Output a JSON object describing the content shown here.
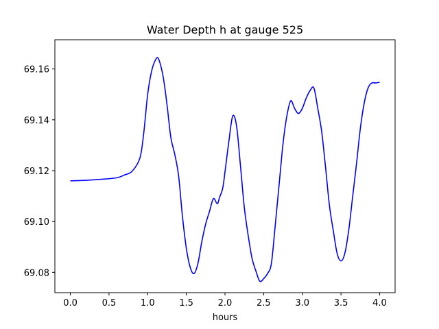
{
  "chart_data": {
    "type": "line",
    "title": "Water Depth h at gauge 525",
    "xlabel": "hours",
    "ylabel": "",
    "xlim": [
      -0.2,
      4.2
    ],
    "ylim": [
      69.072,
      69.1715
    ],
    "grid": false,
    "x_ticks": [
      0.0,
      0.5,
      1.0,
      1.5,
      2.0,
      2.5,
      3.0,
      3.5,
      4.0
    ],
    "x_tick_labels": [
      "0.0",
      "0.5",
      "1.0",
      "1.5",
      "2.0",
      "2.5",
      "3.0",
      "3.5",
      "4.0"
    ],
    "y_ticks": [
      69.08,
      69.1,
      69.12,
      69.14,
      69.16
    ],
    "y_tick_labels": [
      "69.08",
      "69.10",
      "69.12",
      "69.14",
      "69.16"
    ],
    "series": [
      {
        "color": "#0000ff",
        "x": [
          0.0,
          0.2,
          0.4,
          0.6,
          0.7,
          0.8,
          0.9,
          0.95,
          1.0,
          1.05,
          1.1,
          1.14,
          1.2,
          1.25,
          1.3,
          1.35,
          1.4,
          1.45,
          1.5,
          1.55,
          1.6,
          1.65,
          1.7,
          1.75,
          1.8,
          1.85,
          1.9,
          1.93,
          1.97,
          2.0,
          2.05,
          2.1,
          2.15,
          2.2,
          2.25,
          2.3,
          2.35,
          2.4,
          2.45,
          2.5,
          2.55,
          2.6,
          2.65,
          2.7,
          2.75,
          2.8,
          2.85,
          2.9,
          2.95,
          3.0,
          3.05,
          3.1,
          3.15,
          3.2,
          3.25,
          3.3,
          3.35,
          3.4,
          3.45,
          3.5,
          3.55,
          3.6,
          3.65,
          3.7,
          3.75,
          3.8,
          3.85,
          3.9,
          3.95,
          4.0
        ],
        "y": [
          69.116,
          69.1162,
          69.1166,
          69.1172,
          69.1183,
          69.1198,
          69.125,
          69.135,
          69.15,
          69.159,
          69.1635,
          69.164,
          69.157,
          69.146,
          69.133,
          69.1265,
          69.118,
          69.102,
          69.0895,
          69.082,
          69.0795,
          69.0835,
          69.092,
          69.099,
          69.104,
          69.109,
          69.107,
          69.1095,
          69.113,
          69.1195,
          69.1315,
          69.1415,
          69.1375,
          69.122,
          69.1055,
          69.0945,
          69.0855,
          69.0805,
          69.0765,
          69.0775,
          69.0795,
          69.0835,
          69.0985,
          69.1145,
          69.1305,
          69.1415,
          69.1475,
          69.1445,
          69.1425,
          69.1445,
          69.1485,
          69.1515,
          69.1525,
          69.1445,
          69.1355,
          69.1215,
          69.1065,
          69.0965,
          69.0875,
          69.0845,
          69.0875,
          69.0965,
          69.1095,
          69.1225,
          69.1365,
          69.1465,
          69.1525,
          69.1545,
          69.1545,
          69.1548
        ]
      }
    ]
  }
}
